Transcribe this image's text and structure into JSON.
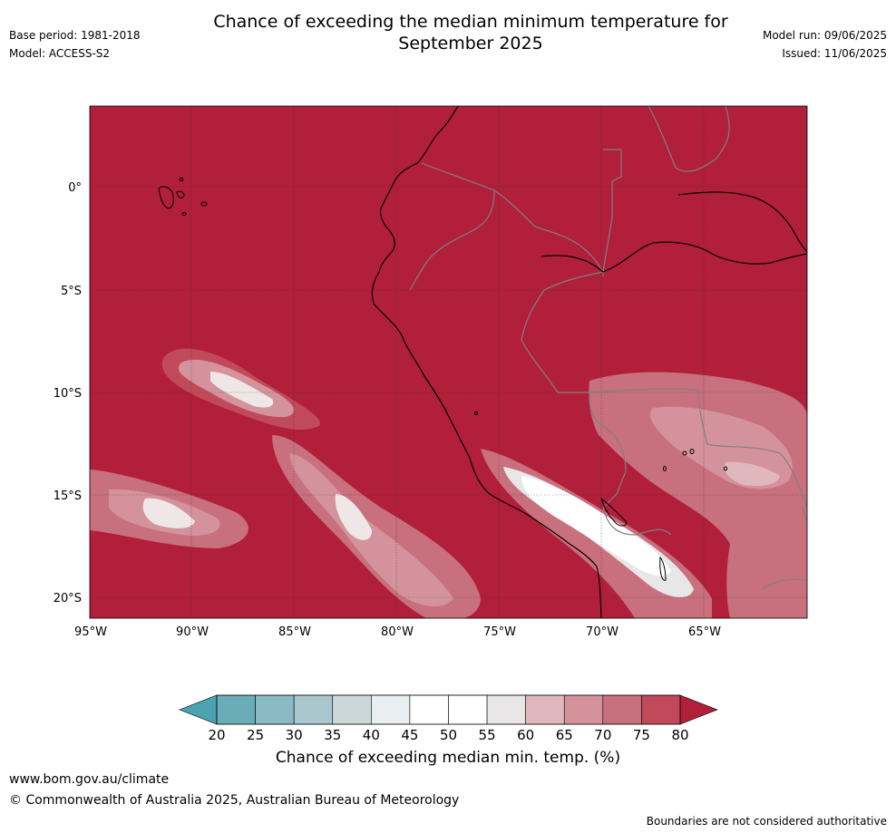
{
  "title_line1": "Chance of exceeding the median minimum temperature for",
  "title_line2": "September 2025",
  "meta_left": {
    "base_period": "Base period: 1981-2018",
    "model": "Model: ACCESS-S2"
  },
  "meta_right": {
    "model_run": "Model run: 09/06/2025",
    "issued": "Issued: 11/06/2025"
  },
  "map": {
    "lon_labels": [
      "95°W",
      "90°W",
      "85°W",
      "80°W",
      "75°W",
      "70°W",
      "65°W"
    ],
    "lon_values": [
      -95,
      -90,
      -85,
      -80,
      -75,
      -70,
      -65
    ],
    "lat_labels": [
      "0°",
      "5°S",
      "10°S",
      "15°S",
      "20°S"
    ],
    "lat_values": [
      0,
      -5,
      -10,
      -15,
      -20
    ],
    "lon_range": [
      -95,
      -60
    ],
    "lat_range": [
      -21,
      4
    ],
    "gridlines": true
  },
  "colorbar": {
    "label": "Chance of exceeding median min. temp. (%)",
    "ticks": [
      "20",
      "25",
      "30",
      "35",
      "40",
      "45",
      "50",
      "55",
      "60",
      "65",
      "70",
      "75",
      "80"
    ],
    "tick_values": [
      20,
      25,
      30,
      35,
      40,
      45,
      50,
      55,
      60,
      65,
      70,
      75,
      80
    ],
    "colors": [
      "#6aacb8",
      "#8bbac5",
      "#aac7cd",
      "#cbd8da",
      "#e9eff1",
      "#ffffff",
      "#ffffff",
      "#e8e6e6",
      "#dfb7bd",
      "#d4939c",
      "#c8707d",
      "#c14a5a"
    ],
    "under_color": "#4aa3b0",
    "over_color": "#b11f3a"
  },
  "footer": {
    "url": "www.bom.gov.au/climate",
    "copyright": "© Commonwealth of Australia 2025, Australian Bureau of Meteorology",
    "disclaimer": "Boundaries are not considered authoritative"
  },
  "colors": {
    "background_max": "#b11f3a",
    "coastline": "#000000",
    "borders": "#808080"
  }
}
